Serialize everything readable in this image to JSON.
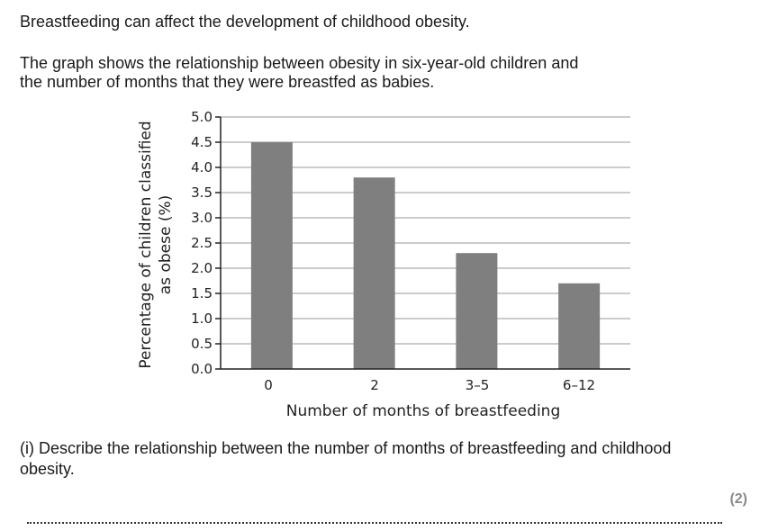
{
  "text": {
    "intro": "Breastfeeding can affect the development of childhood obesity.",
    "desc_line1": "The graph shows the relationship between obesity in six-year-old children and",
    "desc_line2": "the number of months that they were breastfed as babies.",
    "question_line1": "(i) Describe the relationship between the number of months of breastfeeding and childhood",
    "question_line2": "obesity.",
    "marks": "(2)"
  },
  "chart_data": {
    "type": "bar",
    "categories": [
      "0",
      "2",
      "3–5",
      "6–12"
    ],
    "values": [
      4.5,
      3.8,
      2.3,
      1.7
    ],
    "xlabel": "Number of months of breastfeeding",
    "ylabel_line1": "Percentage of children classified",
    "ylabel_line2": "as obese (%)",
    "ylim": [
      0,
      5.0
    ],
    "yticks": [
      "0.0",
      "0.5",
      "1.0",
      "1.5",
      "2.0",
      "2.5",
      "3.0",
      "3.5",
      "4.0",
      "4.5",
      "5.0"
    ],
    "grid": true,
    "bar_color": "#7f7f7f"
  }
}
